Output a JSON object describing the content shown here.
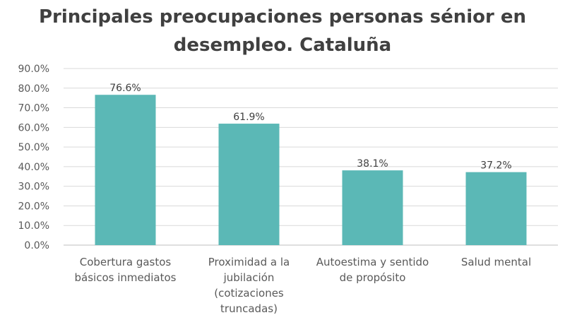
{
  "chart_data": {
    "type": "bar",
    "title": "Principales preocupaciones personas sénior en desempleo. Cataluña",
    "xlabel": "",
    "ylabel": "",
    "categories": [
      "Cobertura gastos básicos inmediatos",
      "Proximidad a la jubilación (cotizaciones truncadas)",
      "Autoestima y sentido de propósito",
      "Salud mental"
    ],
    "category_display": [
      "Cobertura gastos\nbásicos inmediatos",
      "Proximidad a la\njubilación\n(cotizaciones\ntruncadas)",
      "Autoestima y sentido\nde propósito",
      "Salud mental"
    ],
    "series": [
      {
        "values": [
          76.6,
          61.9,
          38.1,
          37.2
        ]
      }
    ],
    "data_labels": [
      "76.6%",
      "61.9%",
      "38.1%",
      "37.2%"
    ],
    "yticks": [
      "0.0%",
      "10.0%",
      "20.0%",
      "30.0%",
      "40.0%",
      "50.0%",
      "60.0%",
      "70.0%",
      "80.0%",
      "90.0%"
    ],
    "ylim": [
      0,
      90
    ],
    "grid": true,
    "legend": "none",
    "colors": {
      "bar": "#5bb8b6",
      "grid": "#d9d9d9",
      "axis": "#bfbfbf"
    }
  }
}
